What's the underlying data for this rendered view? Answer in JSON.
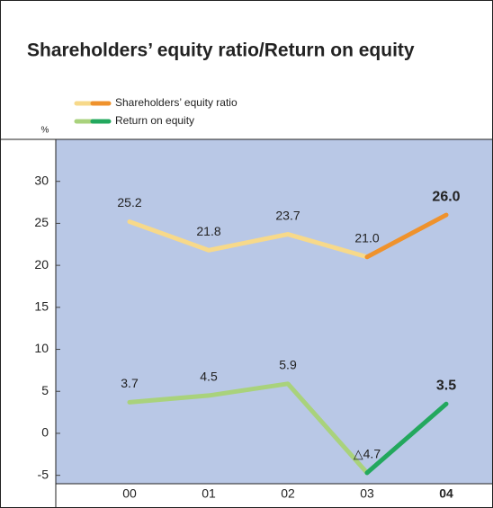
{
  "chart_data": {
    "type": "line",
    "title": "Shareholders’ equity ratio/Return on equity",
    "y_label": "%",
    "categories": [
      "00",
      "01",
      "02",
      "03",
      "04"
    ],
    "series": [
      {
        "name": "Shareholders’ equity ratio",
        "color": "#f7d98a",
        "highlight_color": "#ef922c",
        "values": [
          25.2,
          21.8,
          23.7,
          21.0,
          26.0
        ],
        "value_labels": [
          "25.2",
          "21.8",
          "23.7",
          "21.0",
          "26.0"
        ]
      },
      {
        "name": "Return on equity",
        "color": "#a9d27c",
        "highlight_color": "#23a85e",
        "values": [
          3.7,
          4.5,
          5.9,
          -4.7,
          3.5
        ],
        "value_labels": [
          "3.7",
          "4.5",
          "5.9",
          "△4.7",
          "3.5"
        ]
      }
    ],
    "highlight_index": 4,
    "ylim": [
      -6,
      35
    ],
    "yticks": [
      -5,
      0,
      5,
      10,
      15,
      20,
      25,
      30
    ],
    "plot_color": "#b9c8e6"
  }
}
